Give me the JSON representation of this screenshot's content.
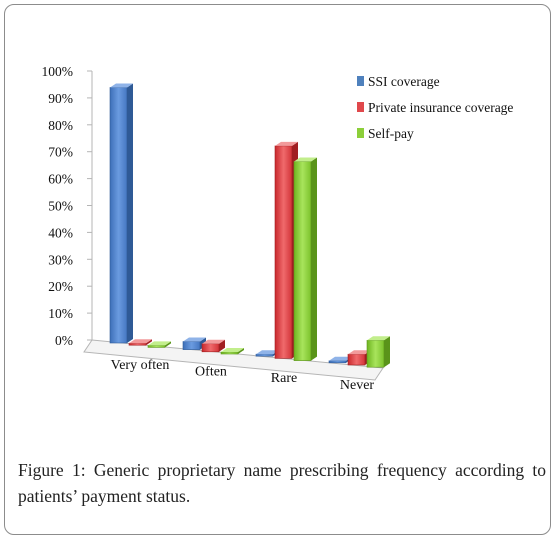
{
  "chart_data": {
    "type": "bar",
    "categories": [
      "Very often",
      "Often",
      "Rare",
      "Never"
    ],
    "series": [
      {
        "name": "SSI coverage",
        "values": [
          95,
          3,
          0,
          0
        ]
      },
      {
        "name": "Private insurance coverage",
        "values": [
          0,
          3,
          79,
          4
        ]
      },
      {
        "name": "Self-pay",
        "values": [
          0,
          0,
          74,
          10
        ]
      }
    ],
    "y_ticks": [
      "0%",
      "10%",
      "20%",
      "30%",
      "40%",
      "50%",
      "60%",
      "70%",
      "80%",
      "90%",
      "100%"
    ],
    "ylim": [
      0,
      100
    ],
    "legend_position": "right",
    "grid": false,
    "colors": {
      "SSI coverage": "#4f81bd",
      "Private insurance coverage": "#e0484c",
      "Self-pay": "#8ccf3a"
    }
  },
  "caption": {
    "label": "Figure 1:",
    "text": "Generic proprietary name prescribing frequency according to patients’ payment status."
  }
}
